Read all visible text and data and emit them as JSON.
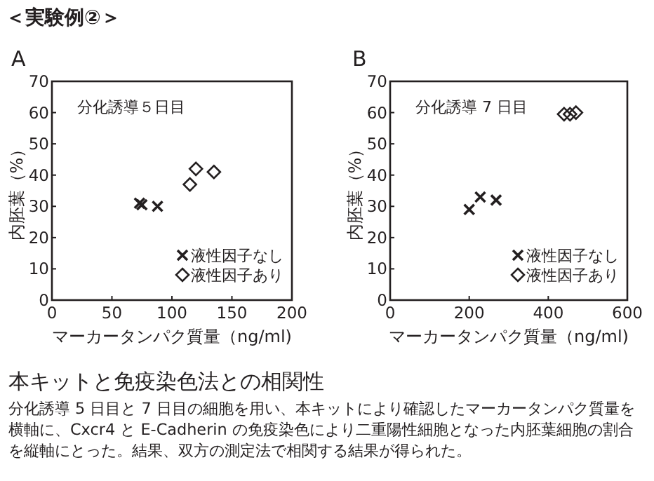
{
  "chart_data": [
    {
      "type": "scatter",
      "title": "A",
      "xlabel": "マーカータンパク質量（ng/ml)",
      "ylabel": "内胚葉（%）",
      "xlim": [
        0,
        200
      ],
      "xticks": [
        0,
        50,
        100,
        150,
        200
      ],
      "ylim": [
        0,
        70
      ],
      "yticks": [
        0,
        10,
        20,
        30,
        40,
        50,
        60,
        70
      ],
      "grid": false,
      "legend": "bottom right",
      "annotations": [
        "＜実験例②＞",
        "分化誘導５日目",
        "本キットと免疫染色法との相関性",
        "分化誘導 5 日目と 7 日目の細胞を用い、本キットにより確認したマーカータンパク質量を横軸に、Cxcr4 と E-Cadherin の免疫染色により二重陽性細胞となった内胚葉細胞の割合を縦軸にとった。結果、双方の測定法で相関する結果が得られた。"
      ],
      "series": [
        {
          "name": "液性因子なし",
          "color": "#231f20",
          "marker": "cross",
          "x": [
            73,
            75,
            88
          ],
          "values": [
            31,
            30.5,
            30
          ]
        },
        {
          "name": "液性因子あり",
          "color": "#231f20",
          "marker": "diamond",
          "x": [
            115,
            120,
            135
          ],
          "values": [
            37,
            42,
            41
          ]
        }
      ]
    },
    {
      "type": "scatter",
      "title": "B",
      "xlabel": "マーカータンパク質量（ng/ml)",
      "ylabel": "内胚葉（%）",
      "xlim": [
        0,
        600
      ],
      "xticks": [
        0,
        200,
        400,
        600
      ],
      "ylim": [
        0,
        70
      ],
      "yticks": [
        0,
        10,
        20,
        30,
        40,
        50,
        60,
        70
      ],
      "grid": false,
      "legend": "bottom right",
      "annotations": [
        "分化誘導 7 日目"
      ],
      "series": [
        {
          "name": "液性因子なし",
          "color": "#231f20",
          "marker": "cross",
          "x": [
            200,
            228,
            268
          ],
          "values": [
            29,
            33,
            32
          ]
        },
        {
          "name": "液性因子あり",
          "color": "#231f20",
          "marker": "diamond",
          "x": [
            440,
            455,
            470
          ],
          "values": [
            59.5,
            59.5,
            60
          ]
        }
      ]
    }
  ]
}
